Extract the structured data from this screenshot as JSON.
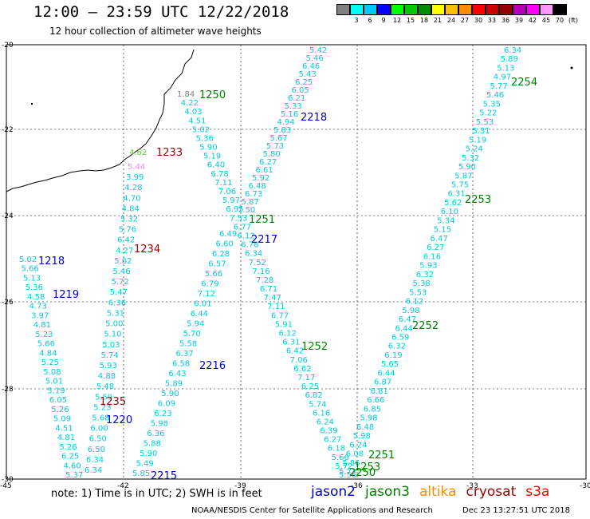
{
  "title": "12:00 — 23:59 UTC 12/22/2018",
  "subtitle": "12 hour collection of altimeter wave heights",
  "colorbar": {
    "colors": [
      "#808080",
      "#00ffff",
      "#00c8ff",
      "#0000ff",
      "#00ff00",
      "#00c800",
      "#008c00",
      "#ffff00",
      "#ffbe00",
      "#ff8c00",
      "#ff0000",
      "#c80000",
      "#960000",
      "#b400b4",
      "#ff00ff",
      "#ff96ff",
      "#000000"
    ],
    "labels": [
      "3",
      "6",
      "9",
      "12",
      "15",
      "18",
      "21",
      "24",
      "27",
      "30",
      "33",
      "36",
      "39",
      "42",
      "45",
      "70",
      "(ft)"
    ]
  },
  "lat_labels": [
    "-20",
    "-22",
    "-24",
    "-26",
    "-28",
    "-30"
  ],
  "lon_labels": [
    "-45",
    "-42",
    "-39",
    "-36",
    "-33",
    "-30"
  ],
  "map_colors": {
    "jason2": "#0000cc",
    "jason3": "#008000",
    "altika": "#ff8c00",
    "cryosat": "#990000",
    "s3a": "#ff0000",
    "wave_cyan": "#00ccdd"
  },
  "passes": [
    {
      "id": "1250",
      "sat": "jason3"
    },
    {
      "id": "2218",
      "sat": "jason2"
    },
    {
      "id": "1233",
      "sat": "cryosat"
    },
    {
      "id": "2254",
      "sat": "jason3"
    },
    {
      "id": "2253",
      "sat": "jason3"
    },
    {
      "id": "1251",
      "sat": "jason3"
    },
    {
      "id": "2217",
      "sat": "jason2"
    },
    {
      "id": "1234",
      "sat": "cryosat"
    },
    {
      "id": "1218",
      "sat": "jason2"
    },
    {
      "id": "1219",
      "sat": "jason2"
    },
    {
      "id": "2252",
      "sat": "jason3"
    },
    {
      "id": "1252",
      "sat": "jason3"
    },
    {
      "id": "2216",
      "sat": "jason2"
    },
    {
      "id": "1235",
      "sat": "cryosat"
    },
    {
      "id": "1220",
      "sat": "jason2"
    },
    {
      "id": "2215",
      "sat": "jason2"
    },
    {
      "id": "2251",
      "sat": "jason3"
    },
    {
      "id": "1253",
      "sat": "jason3"
    },
    {
      "id": "2250",
      "sat": "jason3"
    }
  ],
  "tracks": [
    {
      "id": "t1",
      "values": [
        "5.42",
        "5.46",
        "6.46",
        "5.43",
        "6.25",
        "6.05",
        "6.21",
        "5.33",
        "5.16",
        "4.94",
        "5.83",
        "5.67",
        "5.73",
        "5.80",
        "6.27",
        "6.61",
        "5.92",
        "6.48",
        "6.73",
        "5.87",
        "7.50"
      ]
    },
    {
      "id": "t2",
      "values": [
        "1.84",
        "4.22",
        "4.03",
        "4.51",
        "5.02",
        "5.36",
        "5.90",
        "5.19",
        "6.40",
        "6.78",
        "7.11",
        "7.06",
        "5.97",
        "6.95",
        "7.53",
        "6.77",
        "6.12",
        "6.78",
        "6.34",
        "7.52",
        "7.16",
        "7.28",
        "6.71",
        "7.47",
        "7.11",
        "6.77",
        "5.91",
        "6.12",
        "6.31",
        "6.42",
        "7.06",
        "6.62",
        "7.17",
        "6.25",
        "6.82",
        "5.74",
        "6.16",
        "6.24",
        "6.39",
        "6.27",
        "6.18",
        "5.66",
        "5.72",
        "5.56"
      ]
    },
    {
      "id": "t3",
      "values": [
        "5.44",
        "3.99",
        "4.28",
        "4.70",
        "4.84",
        "5.32",
        "5.76",
        "6.42",
        "4.27",
        "5.02",
        "5.46",
        "5.72",
        "5.47",
        "6.36",
        "5.31",
        "5.00",
        "5.10",
        "5.03",
        "5.74",
        "5.93",
        "4.88",
        "5.48",
        "5.59",
        "5.23",
        "5.68",
        "6.00",
        "6.50",
        "6.50",
        "6.34",
        "6.34"
      ]
    },
    {
      "id": "t4",
      "values": [
        "5.02",
        "5.66",
        "5.13",
        "5.36",
        "4.58",
        "4.73",
        "3.97",
        "4.81",
        "5.23",
        "5.66",
        "4.84",
        "5.25",
        "5.08",
        "5.01",
        "5.19",
        "6.05",
        "5.26",
        "5.09",
        "4.51",
        "4.81",
        "5.26",
        "6.25",
        "4.60",
        "5.37"
      ]
    },
    {
      "id": "t5",
      "values": [
        "6.34",
        "5.89",
        "5.13",
        "4.97",
        "5.77",
        "5.46",
        "5.35",
        "5.22",
        "5.53",
        "5.31",
        "5.19",
        "5.24",
        "5.32",
        "5.90",
        "5.87",
        "5.75",
        "6.31",
        "5.62",
        "6.10",
        "5.34",
        "5.15",
        "6.47",
        "6.27",
        "6.16",
        "5.93",
        "6.32",
        "5.38",
        "5.53",
        "6.12",
        "5.98",
        "6.47",
        "6.44",
        "6.59",
        "6.32",
        "6.19",
        "5.65",
        "6.44",
        "6.87",
        "6.81",
        "6.66",
        "6.85",
        "5.98",
        "6.48",
        "5.98",
        "6.24",
        "6.08",
        "5.86",
        "5.72"
      ]
    },
    {
      "id": "t6",
      "values": [
        "6.49",
        "6.60",
        "6.28",
        "6.57",
        "5.66",
        "6.79",
        "7.12",
        "6.01",
        "6.44",
        "5.94",
        "5.70",
        "5.58",
        "6.37",
        "6.58",
        "6.43",
        "5.89",
        "5.90",
        "6.09",
        "6.23",
        "5.98",
        "6.36",
        "5.88",
        "5.90",
        "5.49",
        "5.85"
      ]
    }
  ],
  "extra_labels": {
    "green_value": "4.62"
  },
  "note": "note:  1) Time is in UTC;  2) SWH is in feet",
  "legend": [
    {
      "name": "jason2",
      "color": "#0000cc"
    },
    {
      "name": "jason3",
      "color": "#008000"
    },
    {
      "name": "altika",
      "color": "#ff8c00"
    },
    {
      "name": "cryosat",
      "color": "#990000"
    },
    {
      "name": "s3a",
      "color": "#ff0000"
    }
  ],
  "credit": "NOAA/NESDIS Center for Satellite Applications and Research",
  "timestamp": "Dec 23 13:27:51 UTC 2018"
}
